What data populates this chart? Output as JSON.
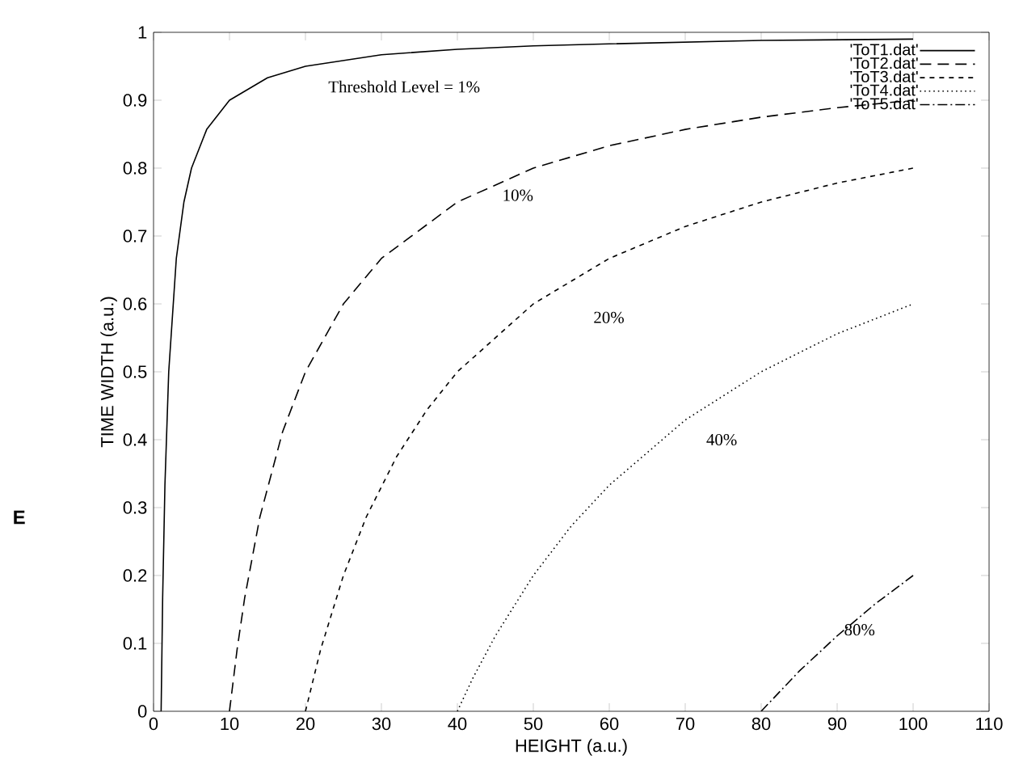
{
  "chart_data": {
    "type": "line",
    "xlabel": "HEIGHT (a.u.)",
    "ylabel": "TIME WIDTH (a.u.)",
    "xlim": [
      0,
      110
    ],
    "ylim": [
      0,
      1
    ],
    "xticks": [
      0,
      10,
      20,
      30,
      40,
      50,
      60,
      70,
      80,
      90,
      100,
      110
    ],
    "yticks": [
      0,
      0.1,
      0.2,
      0.3,
      0.4,
      0.5,
      0.6,
      0.7,
      0.8,
      0.9,
      1
    ],
    "legend": "top right",
    "grid": false,
    "marker": "none",
    "series": [
      {
        "name": "'ToT1.dat'",
        "color": "#000000",
        "line_style": "solid",
        "x": [
          1,
          1.2,
          1.5,
          2,
          3,
          4,
          5,
          7,
          10,
          15,
          20,
          30,
          40,
          50,
          60,
          80,
          100
        ],
        "values": [
          0,
          0.167,
          0.333,
          0.5,
          0.667,
          0.75,
          0.8,
          0.857,
          0.9,
          0.933,
          0.95,
          0.967,
          0.975,
          0.98,
          0.983,
          0.988,
          0.99
        ]
      },
      {
        "name": "'ToT2.dat'",
        "color": "#000000",
        "line_style": "dashed",
        "x": [
          10,
          11,
          12,
          14,
          17,
          20,
          25,
          30,
          40,
          50,
          60,
          70,
          80,
          90,
          100
        ],
        "values": [
          0,
          0.091,
          0.167,
          0.286,
          0.412,
          0.5,
          0.6,
          0.667,
          0.75,
          0.8,
          0.833,
          0.857,
          0.875,
          0.889,
          0.9
        ]
      },
      {
        "name": "'ToT3.dat'",
        "color": "#000000",
        "line_style": "short dashed",
        "x": [
          20,
          22,
          25,
          28,
          32,
          36,
          40,
          50,
          60,
          70,
          80,
          90,
          100
        ],
        "values": [
          0,
          0.091,
          0.2,
          0.286,
          0.375,
          0.444,
          0.5,
          0.6,
          0.667,
          0.714,
          0.75,
          0.778,
          0.8
        ]
      },
      {
        "name": "'ToT4.dat'",
        "color": "#000000",
        "line_style": "dotted",
        "x": [
          40,
          42,
          45,
          50,
          55,
          60,
          70,
          80,
          90,
          100
        ],
        "values": [
          0,
          0.048,
          0.111,
          0.2,
          0.273,
          0.333,
          0.429,
          0.5,
          0.556,
          0.6
        ]
      },
      {
        "name": "'ToT5.dat'",
        "color": "#000000",
        "line_style": "dash-dot",
        "x": [
          80,
          85,
          90,
          95,
          100
        ],
        "values": [
          0,
          0.059,
          0.111,
          0.158,
          0.2
        ]
      }
    ],
    "annotations": [
      "Threshold Level = 1%",
      "10%",
      "20%",
      "40%",
      "80%",
      "E"
    ]
  }
}
